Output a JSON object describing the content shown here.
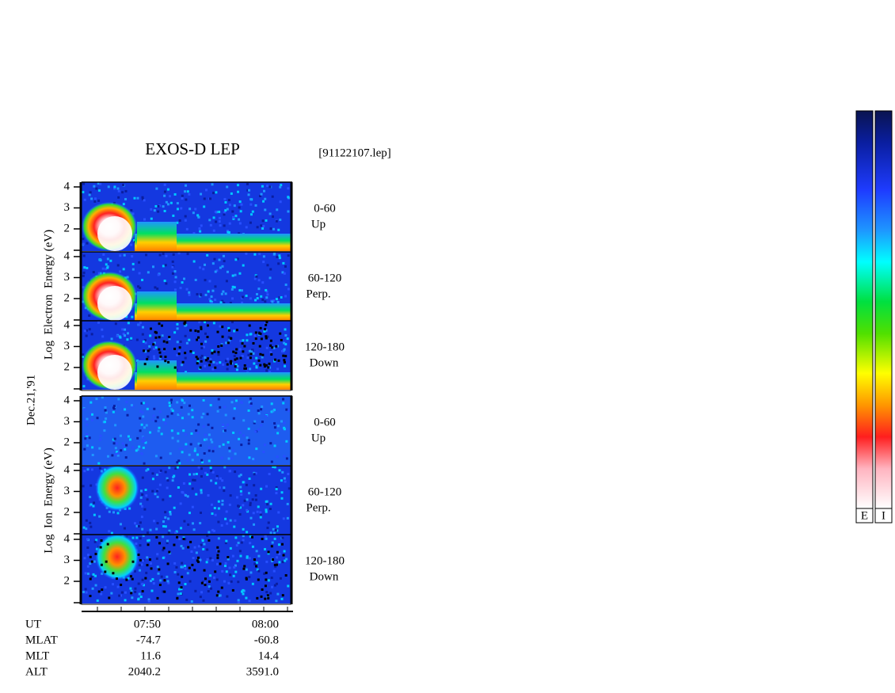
{
  "title": "EXOS-D LEP",
  "file": "[91122107.lep]",
  "date": "Dec.21,'91",
  "electron": {
    "axis_label": "Log  Electron  Energy (eV)",
    "panels": [
      {
        "angle": "0-60",
        "direction": "Up"
      },
      {
        "angle": "60-120",
        "direction": "Perp."
      },
      {
        "angle": "120-180",
        "direction": "Down"
      }
    ]
  },
  "ion": {
    "axis_label": "Log  Ion  Energy (eV)",
    "panels": [
      {
        "angle": "0-60",
        "direction": "Up"
      },
      {
        "angle": "60-120",
        "direction": "Perp."
      },
      {
        "angle": "120-180",
        "direction": "Down"
      }
    ]
  },
  "energy_ticks": [
    4,
    3,
    2
  ],
  "orbit_table": {
    "rows": [
      [
        "UT",
        "07:50",
        "08:00"
      ],
      [
        "MLAT",
        "-74.7",
        "-60.8"
      ],
      [
        "MLT",
        "11.6",
        "14.4"
      ],
      [
        "ALT",
        "2040.2",
        "3591.0"
      ]
    ]
  },
  "colorbars": [
    "E",
    "I"
  ]
}
